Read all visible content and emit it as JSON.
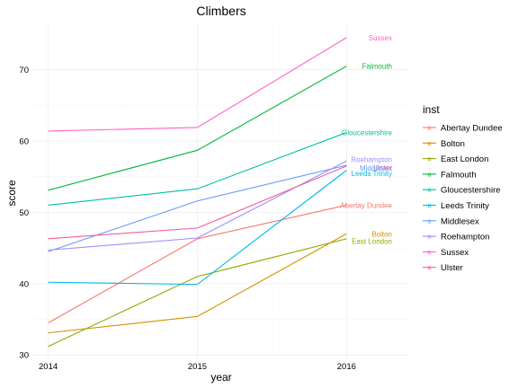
{
  "chart_data": {
    "type": "line",
    "title": "Climbers",
    "xlabel": "year",
    "ylabel": "score",
    "x": [
      2014,
      2015,
      2016
    ],
    "x_ticks": [
      "2014",
      "2015",
      "2016"
    ],
    "xlim": [
      2013.9,
      2016.42
    ],
    "ylim": [
      29.4,
      76.5
    ],
    "y_ticks": [
      30,
      40,
      50,
      60,
      70
    ],
    "y_tick_labels": [
      "30",
      "40",
      "50",
      "60",
      "70"
    ],
    "grid": true,
    "legend": {
      "title": "inst",
      "position": "right",
      "key_glyph": "a"
    },
    "series": [
      {
        "name": "Abertay Dundee",
        "color": "#F8766D",
        "values": [
          34.5,
          46.3,
          51.0
        ]
      },
      {
        "name": "Bolton",
        "color": "#D39200",
        "values": [
          33.1,
          35.4,
          47.0
        ]
      },
      {
        "name": "East London",
        "color": "#93AA00",
        "values": [
          31.2,
          41.0,
          46.3
        ]
      },
      {
        "name": "Falmouth",
        "color": "#00BA38",
        "values": [
          53.1,
          58.7,
          70.5
        ]
      },
      {
        "name": "Gloucestershire",
        "color": "#00C19F",
        "values": [
          51.0,
          53.3,
          61.2
        ]
      },
      {
        "name": "Leeds Trinity",
        "color": "#00B9E3",
        "values": [
          40.2,
          39.9,
          55.9
        ]
      },
      {
        "name": "Middlesex",
        "color": "#619CFF",
        "values": [
          44.5,
          51.6,
          56.6
        ]
      },
      {
        "name": "Roehampton",
        "color": "#9C8DFF",
        "values": [
          44.7,
          46.4,
          57.2
        ]
      },
      {
        "name": "Sussex",
        "color": "#FF61C3",
        "values": [
          61.4,
          61.9,
          74.5
        ]
      },
      {
        "name": "Ulster",
        "color": "#F15E9E",
        "values": [
          46.3,
          47.8,
          56.5
        ]
      }
    ],
    "end_labels": [
      {
        "text": "Sussex",
        "series": "Sussex"
      },
      {
        "text": "Falmouth",
        "series": "Falmouth"
      },
      {
        "text": "Gloucestershire",
        "series": "Gloucestershire"
      },
      {
        "text": "Roehampton",
        "series": "Roehampton"
      },
      {
        "text": "Ulster",
        "series": "Ulster"
      },
      {
        "text": "Middlesex",
        "series": "Middlesex"
      },
      {
        "text": "Leeds Trinity",
        "series": "Leeds Trinity"
      },
      {
        "text": "Abertay Dundee",
        "series": "Abertay Dundee"
      },
      {
        "text": "Bolton",
        "series": "Bolton"
      },
      {
        "text": "East London",
        "series": "East London"
      }
    ]
  }
}
